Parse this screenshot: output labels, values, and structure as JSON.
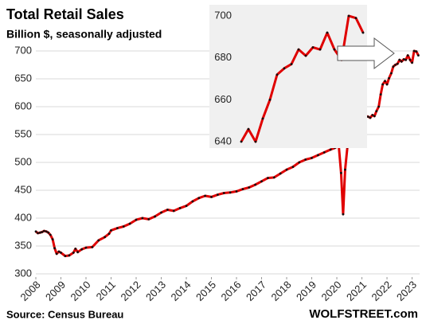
{
  "chart_data": [
    {
      "type": "line",
      "title": "Total Retail Sales",
      "subtitle": "Billion $, seasonally adjusted",
      "source": "Source: Census Bureau",
      "watermark": "WOLFSTREET.com",
      "color": "#e00000",
      "grid": true,
      "xlim": [
        2008,
        2023.3
      ],
      "xticks": [
        2008,
        2009,
        2010,
        2011,
        2012,
        2013,
        2014,
        2015,
        2016,
        2017,
        2018,
        2019,
        2020,
        2021,
        2022,
        2023
      ],
      "ylim": [
        300,
        700
      ],
      "yticks": [
        300,
        350,
        400,
        450,
        500,
        550,
        600,
        650,
        700
      ],
      "x": [
        2008.0,
        2008.08,
        2008.17,
        2008.25,
        2008.33,
        2008.42,
        2008.5,
        2008.58,
        2008.67,
        2008.75,
        2008.83,
        2008.92,
        2009.0,
        2009.17,
        2009.33,
        2009.5,
        2009.58,
        2009.67,
        2009.83,
        2010.0,
        2010.25,
        2010.5,
        2010.75,
        2010.92,
        2011.0,
        2011.25,
        2011.5,
        2011.75,
        2012.0,
        2012.25,
        2012.5,
        2012.75,
        2013.0,
        2013.25,
        2013.5,
        2013.75,
        2014.0,
        2014.25,
        2014.5,
        2014.75,
        2015.0,
        2015.25,
        2015.5,
        2015.75,
        2016.0,
        2016.25,
        2016.5,
        2016.75,
        2017.0,
        2017.25,
        2017.5,
        2017.75,
        2018.0,
        2018.25,
        2018.5,
        2018.75,
        2019.0,
        2019.25,
        2019.5,
        2019.75,
        2019.92,
        2020.0,
        2020.08,
        2020.17,
        2020.25,
        2020.33,
        2020.42,
        2020.5,
        2020.58,
        2020.67,
        2020.75,
        2020.83,
        2020.92,
        2021.0,
        2021.08,
        2021.17,
        2021.25,
        2021.33,
        2021.42,
        2021.5,
        2021.58,
        2021.67,
        2021.75,
        2021.83,
        2021.92,
        2022.0,
        2022.08,
        2022.17,
        2022.25,
        2022.33,
        2022.42,
        2022.5,
        2022.58,
        2022.67,
        2022.75,
        2022.83,
        2022.92,
        2023.0,
        2023.08,
        2023.17,
        2023.25
      ],
      "values": [
        376,
        373,
        374,
        375,
        377,
        376,
        374,
        370,
        362,
        346,
        336,
        340,
        338,
        332,
        333,
        338,
        345,
        339,
        344,
        347,
        348,
        360,
        366,
        372,
        378,
        382,
        385,
        390,
        397,
        400,
        398,
        403,
        410,
        415,
        413,
        418,
        422,
        430,
        436,
        440,
        438,
        442,
        445,
        446,
        448,
        452,
        455,
        460,
        466,
        472,
        473,
        480,
        487,
        492,
        500,
        505,
        508,
        513,
        518,
        523,
        526,
        528,
        528,
        481,
        407,
        487,
        527,
        537,
        541,
        548,
        547,
        545,
        542,
        570,
        565,
        583,
        582,
        580,
        585,
        583,
        592,
        600,
        622,
        640,
        646,
        640,
        651,
        660,
        672,
        675,
        677,
        684,
        681,
        685,
        684,
        692,
        684,
        679,
        700,
        699,
        692
      ]
    },
    {
      "type": "line",
      "color": "#e00000",
      "categories": [
        null,
        null,
        null,
        null,
        null,
        null,
        null,
        null,
        null,
        null,
        null,
        null,
        null,
        null,
        null,
        null,
        null,
        null
      ],
      "values": [
        640,
        646,
        640,
        651,
        660,
        672,
        675,
        677,
        684,
        681,
        685,
        684,
        692,
        684,
        679,
        700,
        699,
        692
      ],
      "ylim": [
        640,
        700
      ],
      "yticks": [
        640,
        660,
        680,
        700
      ]
    }
  ]
}
